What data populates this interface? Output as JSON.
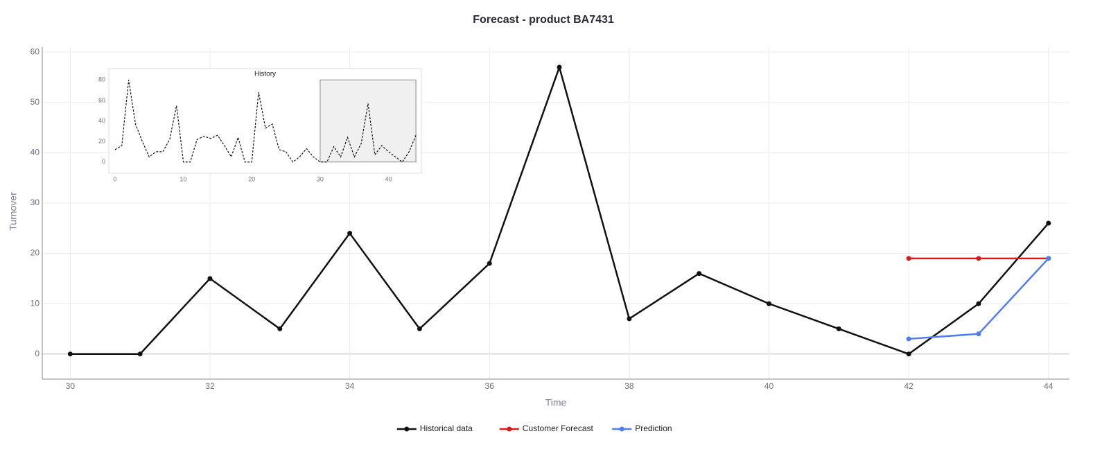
{
  "chart_data": [
    {
      "type": "line",
      "title": "Forecast - product BA7431",
      "xlabel": "Time",
      "ylabel": "Turnover",
      "x": [
        30,
        31,
        32,
        33,
        34,
        35,
        36,
        37,
        38,
        39,
        40,
        41,
        42,
        43,
        44
      ],
      "series": [
        {
          "name": "Historical data",
          "color": "#111111",
          "values": [
            0,
            0,
            15,
            5,
            24,
            5,
            18,
            57,
            7,
            16,
            10,
            5,
            0,
            10,
            26
          ]
        },
        {
          "name": "Customer Forecast",
          "color": "#d91a1a",
          "values": [
            null,
            null,
            null,
            null,
            null,
            null,
            null,
            null,
            null,
            null,
            null,
            null,
            19,
            19,
            19
          ]
        },
        {
          "name": "Prediction",
          "color": "#4f7cf0",
          "values": [
            null,
            null,
            null,
            null,
            null,
            null,
            null,
            null,
            null,
            null,
            null,
            null,
            3,
            4,
            19
          ]
        }
      ],
      "xlim": [
        29.6,
        44.3
      ],
      "ylim": [
        -5,
        61
      ],
      "xticks": [
        30,
        32,
        34,
        36,
        38,
        40,
        42,
        44
      ],
      "yticks": [
        0,
        10,
        20,
        30,
        40,
        50,
        60
      ],
      "grid": true,
      "legend": "bottom",
      "markers": true,
      "line_style": "solid"
    },
    {
      "type": "line",
      "title": "History",
      "x": [
        0,
        1,
        2,
        3,
        4,
        5,
        6,
        7,
        8,
        9,
        10,
        11,
        12,
        13,
        14,
        15,
        16,
        17,
        18,
        19,
        20,
        21,
        22,
        23,
        24,
        25,
        26,
        27,
        28,
        29,
        30,
        31,
        32,
        33,
        34,
        35,
        36,
        37,
        38,
        39,
        40,
        41,
        42,
        43,
        44
      ],
      "values": [
        12,
        16,
        80,
        37,
        20,
        5,
        10,
        10,
        22,
        55,
        0,
        0,
        22,
        25,
        23,
        26,
        16,
        5,
        24,
        0,
        0,
        68,
        33,
        37,
        12,
        10,
        0,
        5,
        13,
        5,
        0,
        0,
        15,
        5,
        24,
        5,
        18,
        57,
        7,
        16,
        10,
        5,
        0,
        10,
        26
      ],
      "color": "#111111",
      "xlim": [
        -0.9,
        44.8
      ],
      "ylim": [
        -11,
        91
      ],
      "xticks": [
        0,
        10,
        20,
        30,
        40
      ],
      "yticks": [
        0,
        20,
        40,
        60,
        80
      ],
      "grid": false,
      "markers": false,
      "line_style": "dashed",
      "highlight": {
        "xlim": [
          30,
          44
        ],
        "ylim": [
          0,
          80
        ]
      }
    }
  ]
}
